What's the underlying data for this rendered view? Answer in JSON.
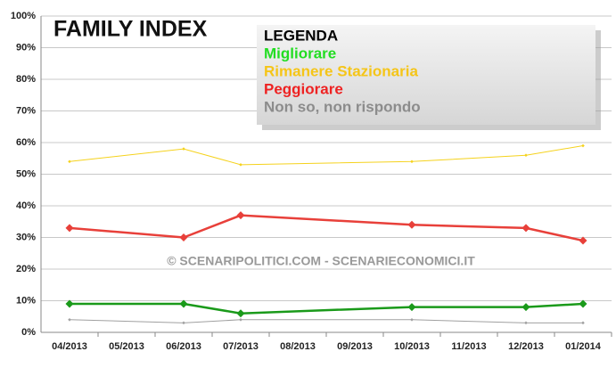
{
  "chart_data": {
    "type": "line",
    "title": "FAMILY INDEX",
    "legend_title": "LEGENDA",
    "watermark": "© SCENARIPOLITICI.COM - SCENARIECONOMICI.IT",
    "xticks": [
      "04/2013",
      "05/2013",
      "06/2013",
      "07/2013",
      "08/2013",
      "09/2013",
      "10/2013",
      "11/2013",
      "12/2013",
      "01/2014"
    ],
    "x": [
      "04/2013",
      "06/2013",
      "07/2013",
      "10/2013",
      "12/2013",
      "01/2014"
    ],
    "series": [
      {
        "name": "Migliorare",
        "color": "#1a9a1a",
        "legend_color": "#22dd22",
        "linewidth": 2.5,
        "values": [
          9,
          9,
          6,
          8,
          8,
          9
        ]
      },
      {
        "name": "Rimanere Stazionaria",
        "color": "#f5d21c",
        "legend_color": "#f5c518",
        "linewidth": 1,
        "values": [
          54,
          58,
          53,
          54,
          56,
          59
        ]
      },
      {
        "name": "Peggiorare",
        "color": "#e8403a",
        "legend_color": "#ee2222",
        "linewidth": 2.5,
        "values": [
          33,
          30,
          37,
          34,
          33,
          29
        ]
      },
      {
        "name": "Non so, non rispondo",
        "color": "#a0a0a0",
        "legend_color": "#8c8c8c",
        "linewidth": 1,
        "values": [
          4,
          3,
          4,
          4,
          3,
          3
        ]
      }
    ],
    "ylim": [
      0,
      100
    ],
    "yticks": [
      {
        "value": 0,
        "label": "0%"
      },
      {
        "value": 10,
        "label": "10%"
      },
      {
        "value": 20,
        "label": "20%"
      },
      {
        "value": 30,
        "label": "30%"
      },
      {
        "value": 40,
        "label": "40%"
      },
      {
        "value": 50,
        "label": "50%"
      },
      {
        "value": 60,
        "label": "60%"
      },
      {
        "value": 70,
        "label": "70%"
      },
      {
        "value": 80,
        "label": "80%"
      },
      {
        "value": 90,
        "label": "90%"
      },
      {
        "value": 100,
        "label": "100%"
      }
    ],
    "grid": true
  }
}
